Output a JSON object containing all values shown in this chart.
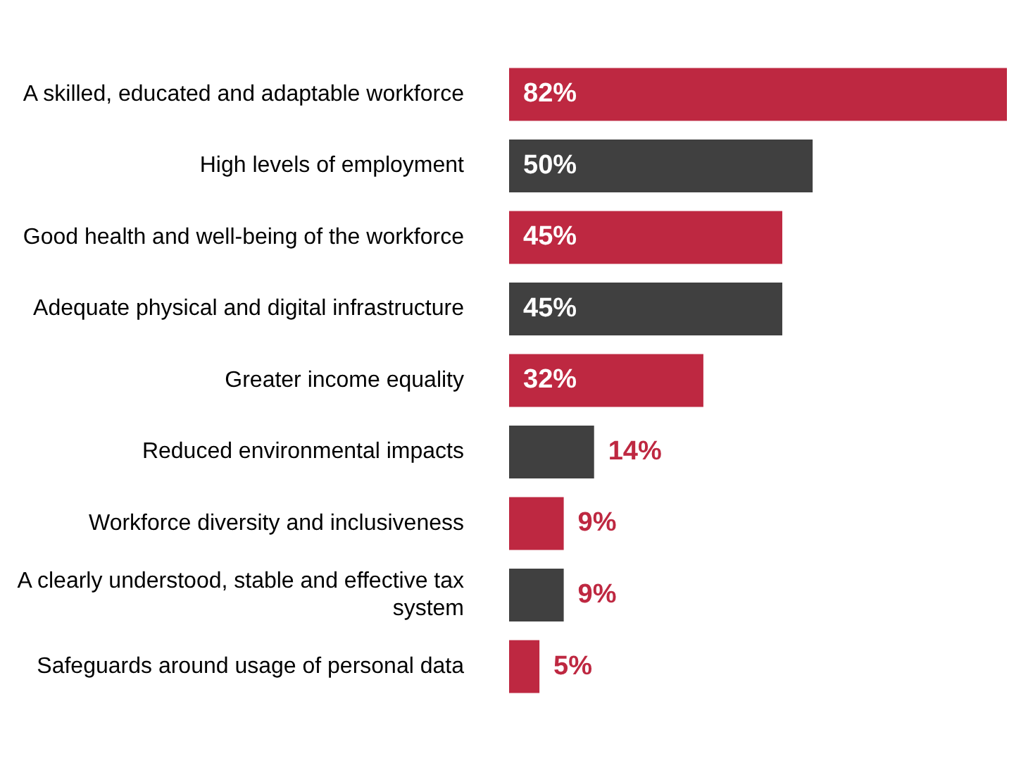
{
  "chart_data": {
    "type": "bar",
    "orientation": "horizontal",
    "categories": [
      "A skilled, educated and adaptable workforce",
      "High levels of employment",
      "Good health and well-being of the workforce",
      "Adequate physical and digital infrastructure",
      "Greater income equality",
      "Reduced environmental impacts",
      "Workforce diversity and inclusiveness",
      "A clearly understood, stable and effective tax system",
      "Safeguards around usage of personal data"
    ],
    "values": [
      82,
      50,
      45,
      45,
      32,
      14,
      9,
      9,
      5
    ],
    "colors": [
      "#be2841",
      "#404040",
      "#be2841",
      "#404040",
      "#be2841",
      "#404040",
      "#be2841",
      "#404040",
      "#be2841"
    ],
    "value_labels": [
      "82%",
      "50%",
      "45%",
      "45%",
      "32%",
      "14%",
      "9%",
      "9%",
      "5%"
    ],
    "legend": false
  }
}
